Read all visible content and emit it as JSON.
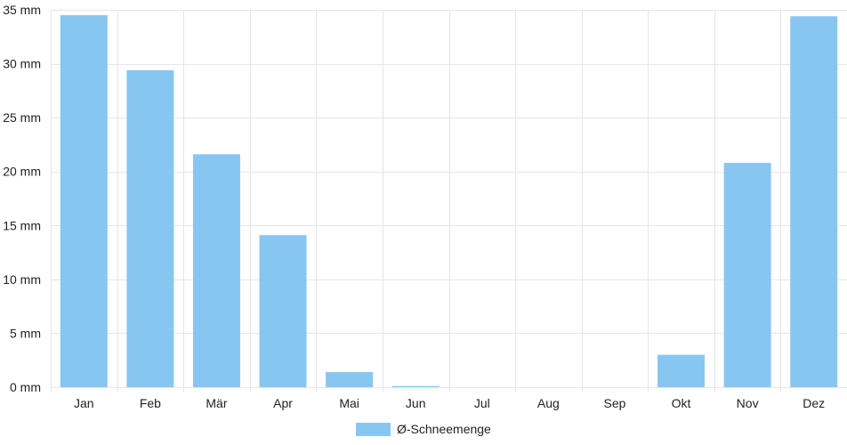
{
  "chart_data": {
    "type": "bar",
    "categories": [
      "Jan",
      "Feb",
      "Mär",
      "Apr",
      "Mai",
      "Jun",
      "Jul",
      "Aug",
      "Sep",
      "Okt",
      "Nov",
      "Dez"
    ],
    "series": [
      {
        "name": "Ø-Schneemenge",
        "values": [
          34.5,
          29.4,
          21.6,
          14.1,
          1.4,
          0.1,
          0,
          0,
          0,
          3.0,
          20.8,
          34.4
        ],
        "color": "#88c6f2"
      }
    ],
    "y_unit": "mm",
    "ylim": [
      0,
      35
    ],
    "y_ticks": [
      0,
      5,
      10,
      15,
      20,
      25,
      30,
      35
    ],
    "y_tick_labels": [
      "0 mm",
      "5 mm",
      "10 mm",
      "15 mm",
      "20 mm",
      "25 mm",
      "30 mm",
      "35 mm"
    ],
    "grid": true,
    "grid_color": "#e6e6e6",
    "legend_position": "bottom-center"
  }
}
